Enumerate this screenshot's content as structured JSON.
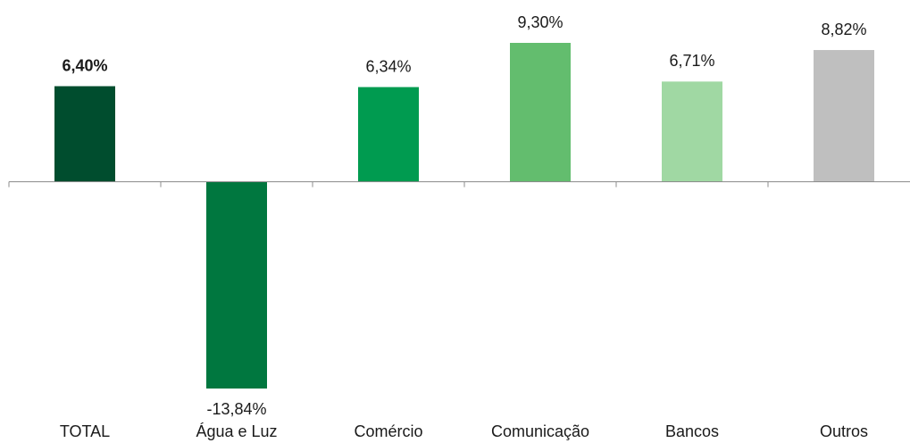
{
  "chart_data": {
    "type": "bar",
    "categories": [
      "TOTAL",
      "Água e Luz",
      "Comércio",
      "Comunicação",
      "Bancos",
      "Outros"
    ],
    "values": [
      6.4,
      -13.84,
      6.34,
      9.3,
      6.71,
      8.82
    ],
    "value_labels": [
      "6,40%",
      "-13,84%",
      "6,34%",
      "9,30%",
      "6,71%",
      "8,82%"
    ],
    "colors": [
      "#004d2e",
      "#00773f",
      "#009b50",
      "#63bd6e",
      "#a0d8a3",
      "#bfbfbf"
    ]
  }
}
